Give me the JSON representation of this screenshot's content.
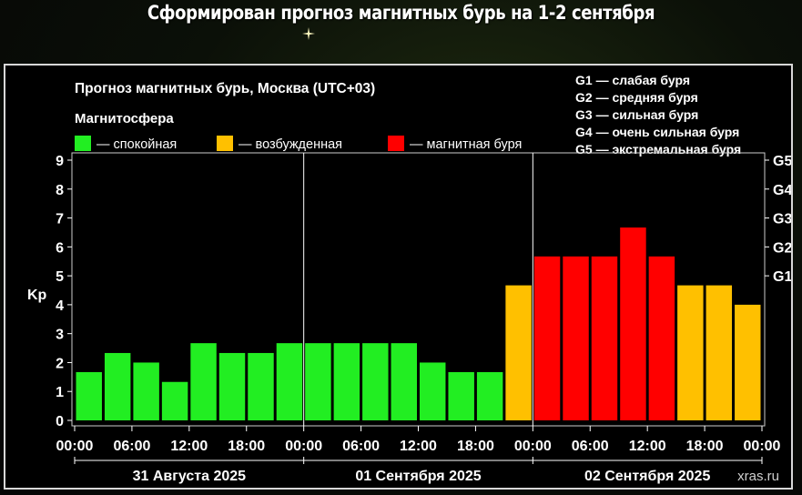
{
  "page_headline": "Сформирован прогноз магнитных бурь на 1-2 сентября",
  "watermark": "xras.ru",
  "colors": {
    "quiet": "#22ee22",
    "excited": "#ffc000",
    "storm": "#ff0000"
  },
  "legend": {
    "heading": "Магнитосфера",
    "items": [
      {
        "label": "— спокойная",
        "color_key": "quiet"
      },
      {
        "label": "— возбужденная",
        "color_key": "excited"
      },
      {
        "label": "— магнитная буря",
        "color_key": "storm"
      }
    ]
  },
  "storm_levels": [
    "G1 — слабая буря",
    "G2 — средняя буря",
    "G3 — сильная буря",
    "G4 — очень сильная буря",
    "G5 — экстремальная буря"
  ],
  "chart_data": {
    "type": "bar",
    "title": "Прогноз магнитных бурь, Москва (UTC+03)",
    "ylabel": "Kp",
    "ylim": [
      0,
      9
    ],
    "y_ticks": [
      0,
      1,
      2,
      3,
      4,
      5,
      6,
      7,
      8,
      9
    ],
    "right_ticks": [
      {
        "value": 5,
        "label": "G1"
      },
      {
        "value": 6,
        "label": "G2"
      },
      {
        "value": 7,
        "label": "G3"
      },
      {
        "value": 8,
        "label": "G4"
      },
      {
        "value": 9,
        "label": "G5"
      }
    ],
    "x_tick_labels": [
      "00:00",
      "06:00",
      "12:00",
      "18:00",
      "00:00",
      "06:00",
      "12:00",
      "18:00",
      "00:00",
      "06:00",
      "12:00",
      "18:00",
      "00:00"
    ],
    "days": [
      "31 Августа 2025",
      "01 Сентября 2025",
      "02 Сентября 2025"
    ],
    "bars": [
      {
        "day": "31 Августа 2025",
        "time": "00:00",
        "value": 1.67,
        "level": "quiet"
      },
      {
        "day": "31 Августа 2025",
        "time": "03:00",
        "value": 2.33,
        "level": "quiet"
      },
      {
        "day": "31 Августа 2025",
        "time": "06:00",
        "value": 2.0,
        "level": "quiet"
      },
      {
        "day": "31 Августа 2025",
        "time": "09:00",
        "value": 1.33,
        "level": "quiet"
      },
      {
        "day": "31 Августа 2025",
        "time": "12:00",
        "value": 2.67,
        "level": "quiet"
      },
      {
        "day": "31 Августа 2025",
        "time": "15:00",
        "value": 2.33,
        "level": "quiet"
      },
      {
        "day": "31 Августа 2025",
        "time": "18:00",
        "value": 2.33,
        "level": "quiet"
      },
      {
        "day": "31 Августа 2025",
        "time": "21:00",
        "value": 2.67,
        "level": "quiet"
      },
      {
        "day": "01 Сентября 2025",
        "time": "00:00",
        "value": 2.67,
        "level": "quiet"
      },
      {
        "day": "01 Сентября 2025",
        "time": "03:00",
        "value": 2.67,
        "level": "quiet"
      },
      {
        "day": "01 Сентября 2025",
        "time": "06:00",
        "value": 2.67,
        "level": "quiet"
      },
      {
        "day": "01 Сентября 2025",
        "time": "09:00",
        "value": 2.67,
        "level": "quiet"
      },
      {
        "day": "01 Сентября 2025",
        "time": "12:00",
        "value": 2.0,
        "level": "quiet"
      },
      {
        "day": "01 Сентября 2025",
        "time": "15:00",
        "value": 1.67,
        "level": "quiet"
      },
      {
        "day": "01 Сентября 2025",
        "time": "18:00",
        "value": 1.67,
        "level": "quiet"
      },
      {
        "day": "01 Сентября 2025",
        "time": "21:00",
        "value": 4.67,
        "level": "excited"
      },
      {
        "day": "02 Сентября 2025",
        "time": "00:00",
        "value": 5.67,
        "level": "storm"
      },
      {
        "day": "02 Сентября 2025",
        "time": "03:00",
        "value": 5.67,
        "level": "storm"
      },
      {
        "day": "02 Сентября 2025",
        "time": "06:00",
        "value": 5.67,
        "level": "storm"
      },
      {
        "day": "02 Сентября 2025",
        "time": "09:00",
        "value": 6.67,
        "level": "storm"
      },
      {
        "day": "02 Сентября 2025",
        "time": "12:00",
        "value": 5.67,
        "level": "storm"
      },
      {
        "day": "02 Сентября 2025",
        "time": "15:00",
        "value": 4.67,
        "level": "excited"
      },
      {
        "day": "02 Сентября 2025",
        "time": "18:00",
        "value": 4.67,
        "level": "excited"
      },
      {
        "day": "02 Сентября 2025",
        "time": "21:00",
        "value": 4.0,
        "level": "excited"
      }
    ]
  }
}
